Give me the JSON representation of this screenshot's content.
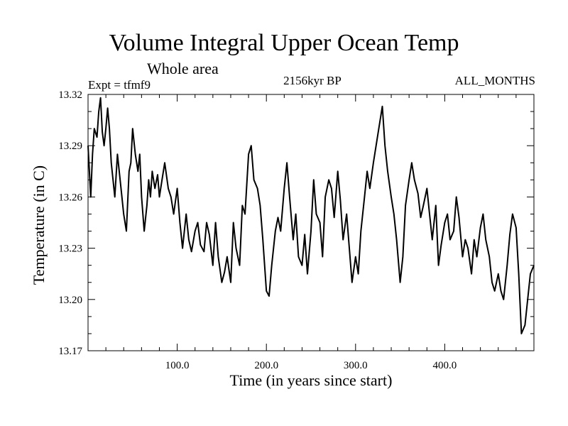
{
  "chart_data": {
    "type": "line",
    "title": "Volume Integral Upper Ocean Temp",
    "subtitle": "Whole area",
    "experiment": "Expt = tfmf9",
    "epoch": "2156kyr BP",
    "months": "ALL_MONTHS",
    "xlabel": "Time (in years since start)",
    "ylabel": "Temperature (in C)",
    "xlim": [
      0,
      500
    ],
    "ylim": [
      13.17,
      13.32
    ],
    "xticks": [
      100,
      200,
      300,
      400
    ],
    "xtick_labels": [
      "100.0",
      "200.0",
      "300.0",
      "400.0"
    ],
    "yticks": [
      13.17,
      13.2,
      13.23,
      13.26,
      13.29,
      13.32
    ],
    "ytick_labels": [
      "13.17",
      "13.20",
      "13.23",
      "13.26",
      "13.29",
      "13.32"
    ],
    "series": [
      {
        "name": "Temperature",
        "x": [
          0,
          3,
          5,
          7,
          10,
          12,
          14,
          16,
          18,
          20,
          22,
          24,
          26,
          28,
          30,
          33,
          36,
          40,
          43,
          46,
          48,
          50,
          53,
          56,
          58,
          60,
          63,
          66,
          68,
          70,
          72,
          75,
          78,
          80,
          83,
          86,
          90,
          93,
          96,
          100,
          103,
          106,
          110,
          113,
          116,
          120,
          123,
          126,
          130,
          133,
          136,
          140,
          143,
          146,
          150,
          153,
          156,
          160,
          163,
          166,
          170,
          173,
          176,
          180,
          183,
          186,
          190,
          193,
          196,
          200,
          203,
          206,
          210,
          213,
          216,
          220,
          223,
          226,
          230,
          233,
          236,
          240,
          243,
          246,
          250,
          253,
          256,
          260,
          263,
          266,
          270,
          273,
          276,
          280,
          283,
          286,
          290,
          293,
          296,
          300,
          303,
          306,
          310,
          313,
          316,
          320,
          323,
          326,
          330,
          333,
          336,
          340,
          343,
          346,
          350,
          353,
          356,
          360,
          363,
          366,
          370,
          373,
          376,
          380,
          383,
          386,
          390,
          393,
          396,
          400,
          403,
          406,
          410,
          413,
          416,
          420,
          423,
          426,
          430,
          433,
          436,
          440,
          443,
          446,
          450,
          453,
          456,
          460,
          463,
          466,
          470,
          473,
          476,
          480,
          483,
          486,
          490,
          493,
          496,
          500
        ],
        "values": [
          13.29,
          13.26,
          13.285,
          13.3,
          13.295,
          13.31,
          13.318,
          13.298,
          13.29,
          13.3,
          13.312,
          13.3,
          13.28,
          13.27,
          13.26,
          13.285,
          13.27,
          13.25,
          13.24,
          13.275,
          13.28,
          13.3,
          13.285,
          13.275,
          13.285,
          13.26,
          13.24,
          13.255,
          13.27,
          13.26,
          13.275,
          13.265,
          13.273,
          13.26,
          13.27,
          13.28,
          13.265,
          13.26,
          13.25,
          13.265,
          13.245,
          13.23,
          13.25,
          13.235,
          13.228,
          13.24,
          13.245,
          13.232,
          13.228,
          13.245,
          13.238,
          13.22,
          13.245,
          13.225,
          13.21,
          13.216,
          13.225,
          13.21,
          13.245,
          13.23,
          13.22,
          13.255,
          13.25,
          13.285,
          13.29,
          13.27,
          13.265,
          13.255,
          13.235,
          13.205,
          13.202,
          13.22,
          13.24,
          13.248,
          13.24,
          13.265,
          13.28,
          13.26,
          13.235,
          13.25,
          13.225,
          13.22,
          13.238,
          13.215,
          13.24,
          13.27,
          13.25,
          13.245,
          13.225,
          13.26,
          13.27,
          13.265,
          13.248,
          13.275,
          13.258,
          13.235,
          13.25,
          13.23,
          13.21,
          13.225,
          13.215,
          13.24,
          13.26,
          13.275,
          13.265,
          13.28,
          13.29,
          13.3,
          13.313,
          13.29,
          13.275,
          13.26,
          13.25,
          13.235,
          13.21,
          13.225,
          13.255,
          13.27,
          13.28,
          13.27,
          13.262,
          13.248,
          13.255,
          13.265,
          13.25,
          13.235,
          13.255,
          13.22,
          13.232,
          13.245,
          13.25,
          13.235,
          13.24,
          13.26,
          13.248,
          13.225,
          13.235,
          13.23,
          13.215,
          13.235,
          13.225,
          13.242,
          13.25,
          13.235,
          13.225,
          13.21,
          13.205,
          13.215,
          13.205,
          13.2,
          13.22,
          13.238,
          13.25,
          13.242,
          13.215,
          13.18,
          13.185,
          13.2,
          13.215,
          13.22
        ]
      }
    ]
  }
}
